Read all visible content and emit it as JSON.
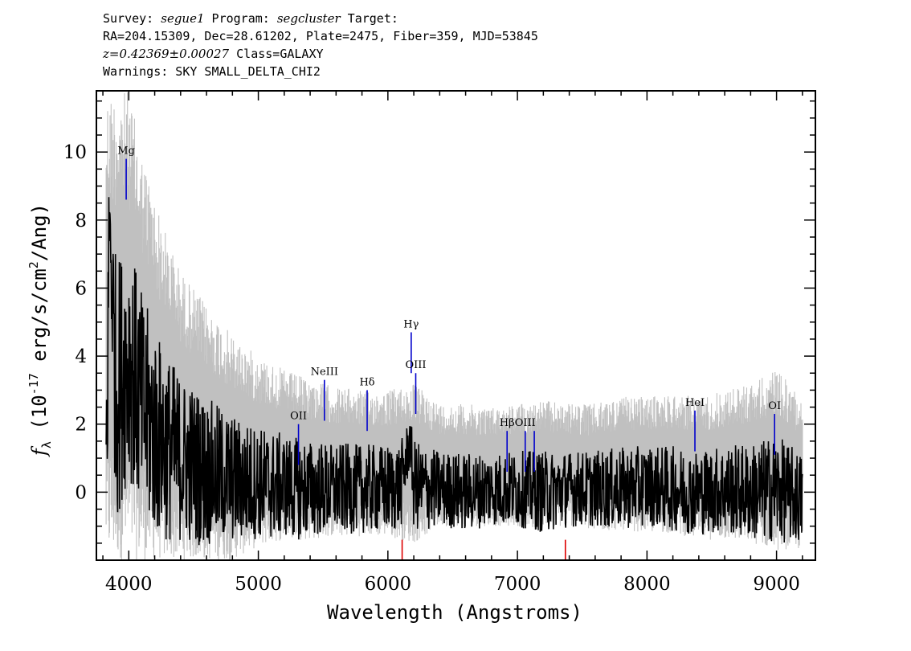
{
  "header": {
    "survey_label": "Survey:",
    "survey": "segue1",
    "program_label": "Program:",
    "program": "segcluster",
    "target_label": "Target:",
    "line2": "RA=204.15309, Dec=28.61202, Plate=2475, Fiber=359, MJD=53845",
    "redshift": "z=0.42369±0.00027",
    "class": "Class=GALAXY",
    "warnings": "Warnings: SKY SMALL_DELTA_CHI2"
  },
  "chart_data": {
    "type": "line",
    "xlabel": "Wavelength (Angstroms)",
    "ylabel": "f_λ (10^-17 erg/s/cm^2/Ang)",
    "xlim": [
      3750,
      9300
    ],
    "ylim": [
      -2,
      11.8
    ],
    "xticks": [
      4000,
      5000,
      6000,
      7000,
      8000,
      9000
    ],
    "yticks": [
      0,
      2,
      4,
      6,
      8,
      10
    ],
    "series": [
      {
        "color": "#c0c0c0",
        "x": [
          3825,
          3900,
          4000,
          4100,
          4250,
          4400,
          4600,
          4800,
          5000,
          5200,
          5400,
          5600,
          5800,
          6000,
          6200,
          6400,
          6600,
          6800,
          7000,
          7200,
          7400,
          7600,
          7800,
          8000,
          8200,
          8400,
          8600,
          8800,
          9000,
          9200
        ],
        "upper": [
          11.8,
          11.8,
          11.8,
          10.0,
          8.0,
          6.5,
          5.5,
          4.6,
          4.0,
          3.6,
          3.3,
          3.1,
          3.0,
          3.0,
          3.2,
          2.6,
          2.6,
          2.5,
          2.6,
          2.7,
          2.6,
          2.6,
          2.8,
          2.8,
          2.9,
          2.8,
          3.0,
          3.2,
          3.6,
          2.8
        ],
        "lower": [
          -2,
          -2,
          -2,
          -2,
          -2,
          -2,
          -2,
          -2,
          -1.6,
          -1.4,
          -1.4,
          -1.3,
          -1.3,
          -1.3,
          -1.5,
          -1.0,
          -1.0,
          -1.0,
          -1.0,
          -1.1,
          -1.0,
          -1.2,
          -1.1,
          -1.2,
          -1.2,
          -1.4,
          -1.4,
          -1.5,
          -1.7,
          -1.7
        ]
      },
      {
        "color": "#000000",
        "x": [
          3825,
          3850,
          3900,
          4000,
          4100,
          4200,
          4300,
          4400,
          4500,
          4600,
          4700,
          4800,
          4900,
          5000,
          5100,
          5200,
          5300,
          5400,
          5500,
          5600,
          5700,
          5800,
          5900,
          6000,
          6100,
          6170,
          6200,
          6300,
          6400,
          6600,
          6800,
          7000,
          7200,
          7400,
          7600,
          7800,
          8000,
          8200,
          8400,
          8600,
          8800,
          9000,
          9200
        ],
        "values": [
          0.0,
          8.3,
          3.0,
          4.0,
          2.5,
          1.8,
          1.3,
          1.0,
          0.8,
          0.6,
          0.5,
          0.4,
          0.3,
          0.3,
          0.2,
          0.2,
          0.1,
          0.1,
          0.1,
          0.1,
          0.1,
          0.1,
          0.1,
          0.1,
          0.2,
          1.5,
          0.2,
          0.1,
          0.1,
          0.0,
          0.1,
          0.1,
          0.0,
          0.1,
          0.1,
          0.1,
          0.2,
          0.1,
          0.0,
          0.1,
          0.0,
          0.1,
          -0.2
        ]
      }
    ],
    "line_markers": [
      {
        "label": "Mg",
        "x": 3980,
        "y_bottom": 8.6,
        "y_top": 9.8
      },
      {
        "label": "OII",
        "x": 5310,
        "y_bottom": 0.8,
        "y_top": 2.0
      },
      {
        "label": "NeIII",
        "x": 5510,
        "y_bottom": 2.1,
        "y_top": 3.3
      },
      {
        "label": "Hδ",
        "x": 5840,
        "y_bottom": 1.8,
        "y_top": 3.0
      },
      {
        "label": "Hγ",
        "x": 6180,
        "y_bottom": 3.5,
        "y_top": 4.7
      },
      {
        "label": "OIII",
        "x": 6215,
        "y_bottom": 2.3,
        "y_top": 3.5
      },
      {
        "label": "Hβ",
        "x": 6920,
        "y_bottom": 0.6,
        "y_top": 1.8
      },
      {
        "label": "OIII",
        "x": 7060,
        "y_bottom": 0.6,
        "y_top": 1.8
      },
      {
        "label": "",
        "x": 7130,
        "y_bottom": 0.6,
        "y_top": 1.8
      },
      {
        "label": "HeI",
        "x": 8370,
        "y_bottom": 1.2,
        "y_top": 2.4
      },
      {
        "label": "OI",
        "x": 8985,
        "y_bottom": 1.1,
        "y_top": 2.3
      }
    ],
    "sky_markers": [
      {
        "x": 6110,
        "y_bottom": -2,
        "y_top": -1.4
      },
      {
        "x": 7370,
        "y_bottom": -2,
        "y_top": -1.4
      }
    ],
    "marker_color": "#0000cc",
    "sky_color": "#dd0000"
  }
}
